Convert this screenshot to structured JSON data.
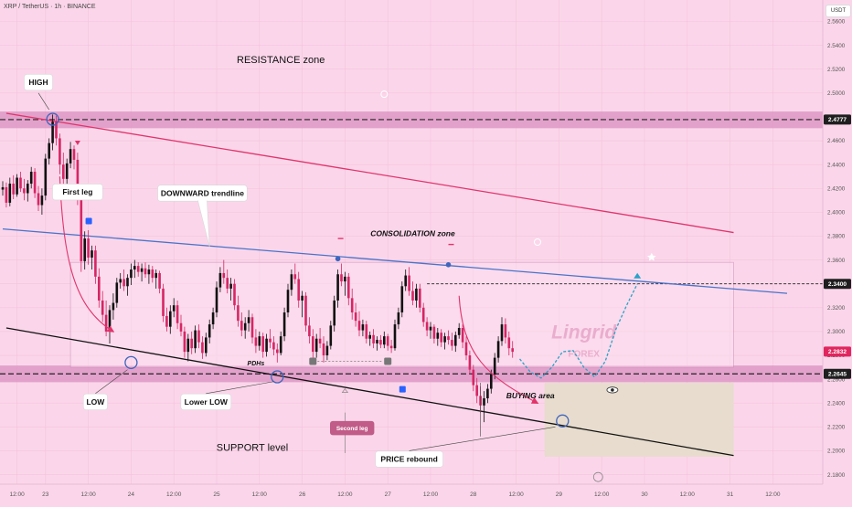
{
  "header": {
    "title": "XRP / TetherUS · 1h · BINANCE",
    "currency": "USDT"
  },
  "chart_data": {
    "type": "candlestick",
    "title": "XRP / TetherUS · 1h · BINANCE",
    "yaxis": {
      "label": "USDT",
      "ticks": [
        2.18,
        2.2,
        2.22,
        2.24,
        2.26,
        2.28,
        2.3,
        2.32,
        2.34,
        2.36,
        2.38,
        2.4,
        2.42,
        2.44,
        2.46,
        2.48,
        2.5,
        2.52,
        2.54,
        2.56
      ],
      "ylim": [
        2.172,
        2.578
      ]
    },
    "xaxis": {
      "ticks": [
        {
          "label": "12:00",
          "t": 4
        },
        {
          "label": "23",
          "t": 12
        },
        {
          "label": "12:00",
          "t": 24
        },
        {
          "label": "24",
          "t": 36
        },
        {
          "label": "12:00",
          "t": 48
        },
        {
          "label": "25",
          "t": 60
        },
        {
          "label": "12:00",
          "t": 72
        },
        {
          "label": "26",
          "t": 84
        },
        {
          "label": "12:00",
          "t": 96
        },
        {
          "label": "27",
          "t": 108
        },
        {
          "label": "12:00",
          "t": 120
        },
        {
          "label": "28",
          "t": 132
        },
        {
          "label": "12:00",
          "t": 144
        },
        {
          "label": "29",
          "t": 156
        },
        {
          "label": "12:00",
          "t": 168
        },
        {
          "label": "30",
          "t": 180
        },
        {
          "label": "12:00",
          "t": 192
        },
        {
          "label": "31",
          "t": 204
        },
        {
          "label": "12:00",
          "t": 216
        }
      ]
    },
    "price_labels": [
      {
        "value": 2.4777,
        "label": "2.4777",
        "style": "dark"
      },
      {
        "value": 2.34,
        "label": "2.3400",
        "style": "dark"
      },
      {
        "value": 2.2832,
        "label": "2.2832",
        "style": "red"
      },
      {
        "value": 2.2645,
        "label": "2.2645",
        "style": "dark"
      }
    ],
    "zones": [
      {
        "name": "resistance",
        "y1": 2.4705,
        "y2": 2.4845
      },
      {
        "name": "support",
        "y1": 2.2575,
        "y2": 2.2715
      },
      {
        "name": "consolidation",
        "t1": 19,
        "t2": 205,
        "y1": 2.27,
        "y2": 2.358
      },
      {
        "name": "buying",
        "t1": 152,
        "t2": 205,
        "y1": 2.195,
        "y2": 2.257
      }
    ],
    "levels": [
      2.4777,
      2.34,
      2.2645
    ],
    "lines": [
      {
        "name": "upper-channel",
        "color": "#e2336b",
        "from": [
          1,
          2.483
        ],
        "to": [
          205,
          2.383
        ]
      },
      {
        "name": "downward-trendline",
        "color": "#4a73c9",
        "from": [
          0,
          2.386
        ],
        "to": [
          220,
          2.332
        ]
      },
      {
        "name": "support-level",
        "color": "#111111",
        "from": [
          1,
          2.303
        ],
        "to": [
          205,
          2.196
        ]
      }
    ],
    "candles": [
      [
        2.419,
        2.426,
        2.414,
        2.421
      ],
      [
        2.421,
        2.425,
        2.404,
        2.408
      ],
      [
        2.408,
        2.429,
        2.405,
        2.424
      ],
      [
        2.424,
        2.431,
        2.411,
        2.415
      ],
      [
        2.415,
        2.432,
        2.413,
        2.429
      ],
      [
        2.429,
        2.434,
        2.417,
        2.42
      ],
      [
        2.42,
        2.428,
        2.41,
        2.416
      ],
      [
        2.416,
        2.427,
        2.409,
        2.424
      ],
      [
        2.424,
        2.438,
        2.42,
        2.434
      ],
      [
        2.434,
        2.437,
        2.412,
        2.416
      ],
      [
        2.416,
        2.422,
        2.401,
        2.406
      ],
      [
        2.406,
        2.42,
        2.398,
        2.414
      ],
      [
        2.414,
        2.449,
        2.41,
        2.445
      ],
      [
        2.445,
        2.462,
        2.44,
        2.458
      ],
      [
        2.458,
        2.482,
        2.452,
        2.476
      ],
      [
        2.476,
        2.481,
        2.456,
        2.462
      ],
      [
        2.462,
        2.466,
        2.432,
        2.44
      ],
      [
        2.44,
        2.45,
        2.422,
        2.428
      ],
      [
        2.428,
        2.445,
        2.42,
        2.441
      ],
      [
        2.441,
        2.459,
        2.437,
        2.453
      ],
      [
        2.453,
        2.456,
        2.436,
        2.444
      ],
      [
        2.444,
        2.45,
        2.406,
        2.412
      ],
      [
        2.412,
        2.415,
        2.35,
        2.359
      ],
      [
        2.359,
        2.384,
        2.352,
        2.378
      ],
      [
        2.378,
        2.385,
        2.356,
        2.362
      ],
      [
        2.362,
        2.372,
        2.352,
        2.368
      ],
      [
        2.368,
        2.372,
        2.34,
        2.346
      ],
      [
        2.346,
        2.353,
        2.32,
        2.326
      ],
      [
        2.326,
        2.334,
        2.308,
        2.314
      ],
      [
        2.314,
        2.326,
        2.296,
        2.3
      ],
      [
        2.3,
        2.322,
        2.29,
        2.318
      ],
      [
        2.318,
        2.332,
        2.31,
        2.324
      ],
      [
        2.324,
        2.345,
        2.32,
        2.341
      ],
      [
        2.341,
        2.349,
        2.336,
        2.344
      ],
      [
        2.344,
        2.352,
        2.334,
        2.338
      ],
      [
        2.338,
        2.348,
        2.33,
        2.345
      ],
      [
        2.345,
        2.357,
        2.339,
        2.352
      ],
      [
        2.352,
        2.36,
        2.345,
        2.355
      ],
      [
        2.355,
        2.358,
        2.346,
        2.35
      ],
      [
        2.35,
        2.357,
        2.342,
        2.353
      ],
      [
        2.353,
        2.358,
        2.345,
        2.348
      ],
      [
        2.348,
        2.356,
        2.34,
        2.352
      ],
      [
        2.352,
        2.355,
        2.341,
        2.345
      ],
      [
        2.345,
        2.352,
        2.336,
        2.349
      ],
      [
        2.349,
        2.351,
        2.332,
        2.336
      ],
      [
        2.336,
        2.34,
        2.308,
        2.313
      ],
      [
        2.313,
        2.32,
        2.3,
        2.304
      ],
      [
        2.304,
        2.322,
        2.298,
        2.317
      ],
      [
        2.317,
        2.328,
        2.312,
        2.322
      ],
      [
        2.322,
        2.326,
        2.302,
        2.307
      ],
      [
        2.307,
        2.314,
        2.296,
        2.3
      ],
      [
        2.3,
        2.304,
        2.278,
        2.283
      ],
      [
        2.283,
        2.298,
        2.275,
        2.294
      ],
      [
        2.294,
        2.3,
        2.281,
        2.286
      ],
      [
        2.286,
        2.305,
        2.282,
        2.301
      ],
      [
        2.301,
        2.306,
        2.286,
        2.291
      ],
      [
        2.291,
        2.296,
        2.277,
        2.282
      ],
      [
        2.282,
        2.299,
        2.279,
        2.295
      ],
      [
        2.295,
        2.31,
        2.29,
        2.306
      ],
      [
        2.306,
        2.32,
        2.302,
        2.316
      ],
      [
        2.316,
        2.342,
        2.312,
        2.337
      ],
      [
        2.337,
        2.354,
        2.333,
        2.349
      ],
      [
        2.349,
        2.36,
        2.34,
        2.345
      ],
      [
        2.345,
        2.352,
        2.332,
        2.336
      ],
      [
        2.336,
        2.345,
        2.326,
        2.34
      ],
      [
        2.34,
        2.344,
        2.318,
        2.322
      ],
      [
        2.322,
        2.33,
        2.304,
        2.309
      ],
      [
        2.309,
        2.316,
        2.296,
        2.301
      ],
      [
        2.301,
        2.312,
        2.294,
        2.307
      ],
      [
        2.307,
        2.318,
        2.3,
        2.312
      ],
      [
        2.312,
        2.315,
        2.29,
        2.295
      ],
      [
        2.295,
        2.302,
        2.282,
        2.288
      ],
      [
        2.288,
        2.3,
        2.284,
        2.296
      ],
      [
        2.296,
        2.299,
        2.278,
        2.283
      ],
      [
        2.283,
        2.298,
        2.279,
        2.294
      ],
      [
        2.294,
        2.302,
        2.286,
        2.291
      ],
      [
        2.291,
        2.296,
        2.28,
        2.285
      ],
      [
        2.285,
        2.29,
        2.274,
        2.282
      ],
      [
        2.282,
        2.3,
        2.28,
        2.296
      ],
      [
        2.296,
        2.32,
        2.292,
        2.316
      ],
      [
        2.316,
        2.34,
        2.312,
        2.335
      ],
      [
        2.335,
        2.352,
        2.33,
        2.348
      ],
      [
        2.348,
        2.357,
        2.34,
        2.344
      ],
      [
        2.344,
        2.35,
        2.32,
        2.326
      ],
      [
        2.326,
        2.334,
        2.312,
        2.33
      ],
      [
        2.33,
        2.333,
        2.3,
        2.305
      ],
      [
        2.305,
        2.312,
        2.29,
        2.296
      ],
      [
        2.296,
        2.302,
        2.278,
        2.283
      ],
      [
        2.283,
        2.298,
        2.278,
        2.294
      ],
      [
        2.294,
        2.303,
        2.286,
        2.29
      ],
      [
        2.29,
        2.296,
        2.274,
        2.28
      ],
      [
        2.28,
        2.292,
        2.276,
        2.288
      ],
      [
        2.288,
        2.309,
        2.285,
        2.305
      ],
      [
        2.305,
        2.33,
        2.3,
        2.326
      ],
      [
        2.326,
        2.352,
        2.32,
        2.348
      ],
      [
        2.348,
        2.357,
        2.338,
        2.342
      ],
      [
        2.342,
        2.35,
        2.33,
        2.346
      ],
      [
        2.346,
        2.349,
        2.322,
        2.328
      ],
      [
        2.328,
        2.336,
        2.31,
        2.316
      ],
      [
        2.316,
        2.324,
        2.304,
        2.309
      ],
      [
        2.309,
        2.317,
        2.296,
        2.301
      ],
      [
        2.301,
        2.31,
        2.296,
        2.306
      ],
      [
        2.306,
        2.309,
        2.29,
        2.294
      ],
      [
        2.294,
        2.3,
        2.288,
        2.297
      ],
      [
        2.297,
        2.302,
        2.286,
        2.29
      ],
      [
        2.29,
        2.296,
        2.284,
        2.293
      ],
      [
        2.293,
        2.297,
        2.286,
        2.289
      ],
      [
        2.289,
        2.3,
        2.286,
        2.296
      ],
      [
        2.296,
        2.298,
        2.284,
        2.288
      ],
      [
        2.288,
        2.293,
        2.282,
        2.286
      ],
      [
        2.286,
        2.31,
        2.284,
        2.306
      ],
      [
        2.306,
        2.32,
        2.302,
        2.316
      ],
      [
        2.316,
        2.342,
        2.312,
        2.338
      ],
      [
        2.338,
        2.352,
        2.334,
        2.347
      ],
      [
        2.347,
        2.354,
        2.33,
        2.334
      ],
      [
        2.334,
        2.342,
        2.322,
        2.326
      ],
      [
        2.326,
        2.34,
        2.32,
        2.336
      ],
      [
        2.336,
        2.34,
        2.316,
        2.32
      ],
      [
        2.32,
        2.324,
        2.304,
        2.308
      ],
      [
        2.308,
        2.312,
        2.296,
        2.301
      ],
      [
        2.301,
        2.308,
        2.294,
        2.304
      ],
      [
        2.304,
        2.306,
        2.29,
        2.294
      ],
      [
        2.294,
        2.303,
        2.288,
        2.299
      ],
      [
        2.299,
        2.302,
        2.287,
        2.291
      ],
      [
        2.291,
        2.299,
        2.285,
        2.296
      ],
      [
        2.296,
        2.301,
        2.289,
        2.293
      ],
      [
        2.293,
        2.299,
        2.284,
        2.288
      ],
      [
        2.288,
        2.3,
        2.283,
        2.297
      ],
      [
        2.297,
        2.307,
        2.294,
        2.303
      ],
      [
        2.303,
        2.306,
        2.286,
        2.291
      ],
      [
        2.291,
        2.296,
        2.276,
        2.28
      ],
      [
        2.28,
        2.284,
        2.264,
        2.268
      ],
      [
        2.268,
        2.272,
        2.25,
        2.255
      ],
      [
        2.255,
        2.261,
        2.24,
        2.246
      ],
      [
        2.246,
        2.254,
        2.232,
        2.238
      ],
      [
        2.238,
        2.25,
        2.224,
        2.244
      ],
      [
        2.244,
        2.256,
        2.24,
        2.252
      ],
      [
        2.252,
        2.268,
        2.248,
        2.264
      ],
      [
        2.264,
        2.282,
        2.26,
        2.278
      ],
      [
        2.278,
        2.296,
        2.274,
        2.292
      ],
      [
        2.292,
        2.312,
        2.288,
        2.306
      ],
      [
        2.306,
        2.311,
        2.29,
        2.295
      ],
      [
        2.295,
        2.3,
        2.28,
        2.286
      ],
      [
        2.286,
        2.292,
        2.278,
        2.283
      ]
    ],
    "projection": [
      [
        145,
        2.277
      ],
      [
        148,
        2.266
      ],
      [
        151,
        2.261
      ],
      [
        154,
        2.27
      ],
      [
        157,
        2.283
      ],
      [
        160,
        2.284
      ],
      [
        163,
        2.27
      ],
      [
        166,
        2.262
      ],
      [
        169,
        2.275
      ],
      [
        172,
        2.302
      ],
      [
        175,
        2.322
      ],
      [
        178,
        2.34
      ]
    ],
    "annotations": [
      {
        "text": "RESISTANCE zone",
        "t": 78,
        "y": 2.525,
        "style": "plain-large"
      },
      {
        "text": "HIGH",
        "t": 10,
        "y": 2.509,
        "style": "tag"
      },
      {
        "text": "First leg",
        "t": 21,
        "y": 2.417,
        "style": "tag"
      },
      {
        "text": "DOWNWARD trendline",
        "t": 56,
        "y": 2.416,
        "style": "tag"
      },
      {
        "text": "CONSOLIDATION zone",
        "t": 115,
        "y": 2.38,
        "style": "italic"
      },
      {
        "text": "PDHs",
        "t": 71,
        "y": 2.274,
        "style": "plain-small"
      },
      {
        "text": "LOW",
        "t": 26,
        "y": 2.241,
        "style": "tag"
      },
      {
        "text": "Lower LOW",
        "t": 57,
        "y": 2.241,
        "style": "tag"
      },
      {
        "text": "SUPPORT level",
        "t": 70,
        "y": 2.2,
        "style": "plain-large"
      },
      {
        "text": "Second leg",
        "t": 98,
        "y": 2.219,
        "style": "tag-dark"
      },
      {
        "text": "PRICE rebound",
        "t": 114,
        "y": 2.193,
        "style": "tag"
      },
      {
        "text": "BUYING area",
        "t": 148,
        "y": 2.244,
        "style": "italic"
      }
    ],
    "watermark": {
      "line1": "Lingrid",
      "line2": "FOREX"
    }
  }
}
